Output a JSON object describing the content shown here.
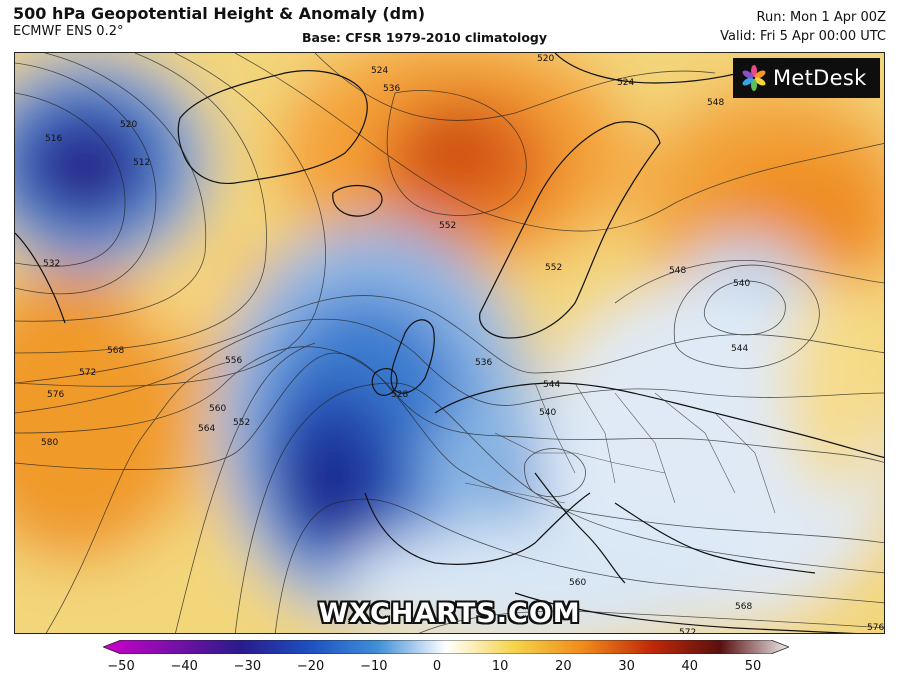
{
  "header": {
    "title": "500 hPa Geopotential Height & Anomaly (dm)",
    "subtitle": "ECMWF ENS 0.2°",
    "base": "Base: CFSR 1979-2010 climatology",
    "run": "Run: Mon 1 Apr 00Z",
    "valid": "Valid: Fri 5 Apr 00:00 UTC"
  },
  "logo": {
    "text": "MetDesk",
    "icon": "flower-logo-icon"
  },
  "watermark": "WXCHARTS.COM",
  "colorbar": {
    "ticks": [
      "−50",
      "−40",
      "−30",
      "−20",
      "−10",
      "0",
      "10",
      "20",
      "30",
      "40",
      "50"
    ],
    "colors": [
      "#cc00cc",
      "#7a10a8",
      "#2a1a8c",
      "#1d4fc0",
      "#3f8fd8",
      "#ffffff",
      "#f5d44a",
      "#f08a1c",
      "#c02808",
      "#5a1010",
      "#ececec"
    ]
  },
  "contour_labels": [
    "516",
    "520",
    "524",
    "528",
    "532",
    "536",
    "540",
    "544",
    "548",
    "552",
    "556",
    "560",
    "564",
    "568",
    "572",
    "576",
    "580"
  ],
  "map_labels": {
    "l516": "516",
    "l520": "520",
    "l512": "512",
    "l532": "532",
    "l524": "524",
    "l536": "536",
    "l552a": "552",
    "l552b": "552",
    "l540a": "540",
    "l544a": "544",
    "l548a": "548",
    "l548b": "548",
    "l568a": "568",
    "l572a": "572",
    "l576a": "576",
    "l580": "580",
    "l556": "556",
    "l560a": "560",
    "l564": "564",
    "l552c": "552",
    "l528": "528",
    "l536b": "536",
    "l540b": "540",
    "l544b": "544",
    "l560b": "560",
    "l568b": "568",
    "l572b": "572",
    "l576b": "576",
    "l520b": "520",
    "l524b": "524"
  }
}
